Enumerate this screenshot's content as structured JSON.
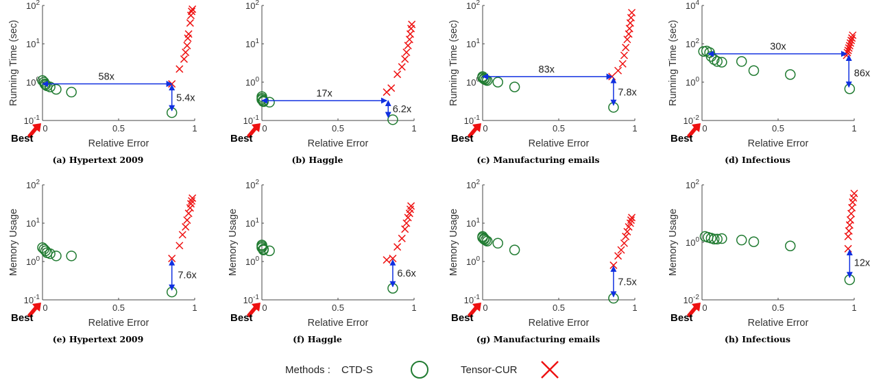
{
  "colors": {
    "ctd": "#1f7a30",
    "cur": "#ee1111",
    "arrow": "#1030e0",
    "best": "#ee1111"
  },
  "legend": {
    "title": "Methods :",
    "ctd": "CTD-S",
    "cur": "Tensor-CUR"
  },
  "chart_data": [
    {
      "type": "scatter",
      "caption": "(a) Hypertext 2009",
      "xlabel": "Relative Error",
      "ylabel": "Running Time (sec)",
      "xlim": [
        0,
        1
      ],
      "ylog": true,
      "ylim": [
        0.1,
        100
      ],
      "xticks": [
        "0",
        "0.5",
        "1"
      ],
      "yticks": [
        "10^-1",
        "10^0",
        "10^1",
        "10^2"
      ],
      "best_label": "Best",
      "series": [
        {
          "name": "CTD-S",
          "points": [
            [
              0.0,
              1.1
            ],
            [
              0.01,
              1.0
            ],
            [
              0.015,
              0.9
            ],
            [
              0.02,
              0.85
            ],
            [
              0.03,
              0.8
            ],
            [
              0.05,
              0.75
            ],
            [
              0.09,
              0.65
            ],
            [
              0.19,
              0.55
            ],
            [
              0.85,
              0.16
            ]
          ]
        },
        {
          "name": "Tensor-CUR",
          "points": [
            [
              0.85,
              0.9
            ],
            [
              0.9,
              2.2
            ],
            [
              0.93,
              4
            ],
            [
              0.94,
              6
            ],
            [
              0.95,
              9
            ],
            [
              0.955,
              14
            ],
            [
              0.96,
              18
            ],
            [
              0.97,
              35
            ],
            [
              0.975,
              55
            ],
            [
              0.98,
              70
            ],
            [
              0.985,
              80
            ]
          ]
        }
      ],
      "arrows": [
        {
          "label": "58x",
          "from": [
            0.0,
            0.9
          ],
          "to": [
            0.85,
            0.9
          ],
          "label_at": [
            0.42,
            0.9
          ],
          "label_side": "above"
        },
        {
          "label": "5.4x",
          "from": [
            0.85,
            0.85
          ],
          "to": [
            0.85,
            0.18
          ],
          "label_at": [
            0.87,
            0.4
          ],
          "label_side": "right"
        }
      ]
    },
    {
      "type": "scatter",
      "caption": "(b) Haggle",
      "xlabel": "Relative Error",
      "ylabel": "",
      "xlim": [
        0,
        1
      ],
      "ylog": true,
      "ylim": [
        0.1,
        100
      ],
      "xticks": [
        "0",
        "0.5",
        "1"
      ],
      "yticks": [
        "10^-1",
        "10^0",
        "10^1",
        "10^2"
      ],
      "best_label": "Best",
      "series": [
        {
          "name": "CTD-S",
          "points": [
            [
              0.0,
              0.42
            ],
            [
              0.0,
              0.38
            ],
            [
              0.0,
              0.35
            ],
            [
              0.01,
              0.33
            ],
            [
              0.01,
              0.31
            ],
            [
              0.05,
              0.3
            ],
            [
              0.86,
              0.105
            ]
          ]
        },
        {
          "name": "Tensor-CUR",
          "points": [
            [
              0.82,
              0.55
            ],
            [
              0.85,
              0.7
            ],
            [
              0.89,
              1.6
            ],
            [
              0.92,
              2.5
            ],
            [
              0.94,
              4
            ],
            [
              0.95,
              6
            ],
            [
              0.96,
              9
            ],
            [
              0.97,
              13
            ],
            [
              0.975,
              18
            ],
            [
              0.98,
              25
            ],
            [
              0.985,
              32
            ]
          ]
        }
      ],
      "arrows": [
        {
          "label": "17x",
          "from": [
            0.0,
            0.33
          ],
          "to": [
            0.82,
            0.33
          ],
          "label_at": [
            0.41,
            0.33
          ],
          "label_side": "above"
        },
        {
          "label": "6.2x",
          "from": [
            0.83,
            0.33
          ],
          "to": [
            0.83,
            0.12
          ],
          "label_at": [
            0.85,
            0.2
          ],
          "label_side": "right"
        }
      ]
    },
    {
      "type": "scatter",
      "caption": "(c) Manufacturing emails",
      "xlabel": "Relative Error",
      "ylabel": "Running Time (sec)",
      "xlim": [
        0,
        1
      ],
      "ylog": true,
      "ylim": [
        0.1,
        100
      ],
      "xticks": [
        "0",
        "0.5",
        "1"
      ],
      "yticks": [
        "10^-1",
        "10^0",
        "10^1",
        "10^2"
      ],
      "best_label": "Best",
      "series": [
        {
          "name": "CTD-S",
          "points": [
            [
              0.0,
              1.4
            ],
            [
              0.0,
              1.3
            ],
            [
              0.01,
              1.25
            ],
            [
              0.01,
              1.2
            ],
            [
              0.02,
              1.15
            ],
            [
              0.03,
              1.1
            ],
            [
              0.1,
              1.0
            ],
            [
              0.21,
              0.75
            ],
            [
              0.86,
              0.22
            ]
          ]
        },
        {
          "name": "Tensor-CUR",
          "points": [
            [
              0.85,
              1.4
            ],
            [
              0.89,
              2
            ],
            [
              0.92,
              3
            ],
            [
              0.93,
              5
            ],
            [
              0.94,
              8
            ],
            [
              0.95,
              13
            ],
            [
              0.96,
              18
            ],
            [
              0.965,
              25
            ],
            [
              0.97,
              35
            ],
            [
              0.975,
              48
            ],
            [
              0.98,
              65
            ]
          ]
        }
      ],
      "arrows": [
        {
          "label": "83x",
          "from": [
            0.0,
            1.4
          ],
          "to": [
            0.85,
            1.4
          ],
          "label_at": [
            0.42,
            1.4
          ],
          "label_side": "above"
        },
        {
          "label": "7.8x",
          "from": [
            0.86,
            1.3
          ],
          "to": [
            0.86,
            0.25
          ],
          "label_at": [
            0.88,
            0.55
          ],
          "label_side": "right"
        }
      ]
    },
    {
      "type": "scatter",
      "caption": "(d) Infectious",
      "xlabel": "Relative Error",
      "ylabel": "Running Time (sec)",
      "xlim": [
        0,
        1
      ],
      "ylog": true,
      "ylim": [
        0.01,
        10000
      ],
      "xticks": [
        "0",
        "0.5",
        "1"
      ],
      "yticks": [
        "10^-2",
        "10^0",
        "10^2",
        "10^4"
      ],
      "best_label": "Best",
      "series": [
        {
          "name": "CTD-S",
          "points": [
            [
              0.01,
              40
            ],
            [
              0.03,
              42
            ],
            [
              0.05,
              35
            ],
            [
              0.06,
              22
            ],
            [
              0.08,
              15
            ],
            [
              0.1,
              12
            ],
            [
              0.13,
              11
            ],
            [
              0.26,
              12
            ],
            [
              0.34,
              4
            ],
            [
              0.58,
              2.5
            ],
            [
              0.97,
              0.45
            ]
          ]
        },
        {
          "name": "Tensor-CUR",
          "points": [
            [
              0.95,
              25
            ],
            [
              0.955,
              35
            ],
            [
              0.96,
              45
            ],
            [
              0.965,
              60
            ],
            [
              0.97,
              80
            ],
            [
              0.975,
              110
            ],
            [
              0.98,
              150
            ],
            [
              0.985,
              200
            ],
            [
              0.99,
              280
            ]
          ]
        }
      ],
      "arrows": [
        {
          "label": "30x",
          "from": [
            0.04,
            30
          ],
          "to": [
            0.95,
            30
          ],
          "label_at": [
            0.5,
            30
          ],
          "label_side": "above"
        },
        {
          "label": "86x",
          "from": [
            0.965,
            25
          ],
          "to": [
            0.965,
            0.55
          ],
          "label_at": [
            0.99,
            3
          ],
          "label_side": "right"
        }
      ]
    },
    {
      "type": "scatter",
      "caption": "(e) Hypertext 2009",
      "xlabel": "Relative Error",
      "ylabel": "Memory Usage",
      "xlim": [
        0,
        1
      ],
      "ylog": true,
      "ylim": [
        0.1,
        100
      ],
      "xticks": [
        "0",
        "0.5",
        "1"
      ],
      "yticks": [
        "10^-1",
        "10^0",
        "10^1",
        "10^2"
      ],
      "best_label": "Best",
      "series": [
        {
          "name": "CTD-S",
          "points": [
            [
              0.0,
              2.3
            ],
            [
              0.01,
              2.1
            ],
            [
              0.02,
              1.9
            ],
            [
              0.03,
              1.7
            ],
            [
              0.05,
              1.6
            ],
            [
              0.09,
              1.4
            ],
            [
              0.19,
              1.4
            ],
            [
              0.85,
              0.16
            ]
          ]
        },
        {
          "name": "Tensor-CUR",
          "points": [
            [
              0.85,
              1.2
            ],
            [
              0.9,
              2.6
            ],
            [
              0.92,
              5
            ],
            [
              0.94,
              8
            ],
            [
              0.95,
              12
            ],
            [
              0.96,
              18
            ],
            [
              0.97,
              25
            ],
            [
              0.975,
              32
            ],
            [
              0.98,
              38
            ],
            [
              0.985,
              45
            ]
          ]
        }
      ],
      "arrows": [
        {
          "label": "7.6x",
          "from": [
            0.85,
            1.1
          ],
          "to": [
            0.85,
            0.18
          ],
          "label_at": [
            0.88,
            0.45
          ],
          "label_side": "right"
        }
      ]
    },
    {
      "type": "scatter",
      "caption": "(f) Haggle",
      "xlabel": "Relative Error",
      "ylabel": "Memory Usage",
      "xlim": [
        0,
        1
      ],
      "ylog": true,
      "ylim": [
        0.1,
        100
      ],
      "xticks": [
        "0",
        "0.5",
        "1"
      ],
      "yticks": [
        "10^-1",
        "10^0",
        "10^1",
        "10^2"
      ],
      "best_label": "Best",
      "series": [
        {
          "name": "CTD-S",
          "points": [
            [
              0.0,
              2.7
            ],
            [
              0.0,
              2.5
            ],
            [
              0.0,
              2.3
            ],
            [
              0.01,
              2.1
            ],
            [
              0.01,
              2.0
            ],
            [
              0.05,
              1.9
            ],
            [
              0.86,
              0.2
            ]
          ]
        },
        {
          "name": "Tensor-CUR",
          "points": [
            [
              0.82,
              1.1
            ],
            [
              0.86,
              1.2
            ],
            [
              0.89,
              2.4
            ],
            [
              0.92,
              4
            ],
            [
              0.94,
              7
            ],
            [
              0.95,
              10
            ],
            [
              0.96,
              14
            ],
            [
              0.97,
              18
            ],
            [
              0.975,
              23
            ],
            [
              0.98,
              28
            ]
          ]
        }
      ],
      "arrows": [
        {
          "label": "6.6x",
          "from": [
            0.86,
            1.1
          ],
          "to": [
            0.86,
            0.22
          ],
          "label_at": [
            0.88,
            0.5
          ],
          "label_side": "right"
        }
      ]
    },
    {
      "type": "scatter",
      "caption": "(g) Manufacturing emails",
      "xlabel": "Relative Error",
      "ylabel": "Memory Usage",
      "xlim": [
        0,
        1
      ],
      "ylog": true,
      "ylim": [
        0.1,
        100
      ],
      "xticks": [
        "0",
        "0.5",
        "1"
      ],
      "yticks": [
        "10^-1",
        "10^0",
        "10^1",
        "10^2"
      ],
      "best_label": "Best",
      "series": [
        {
          "name": "CTD-S",
          "points": [
            [
              0.0,
              4.5
            ],
            [
              0.0,
              4.2
            ],
            [
              0.01,
              4.0
            ],
            [
              0.01,
              3.8
            ],
            [
              0.02,
              3.6
            ],
            [
              0.03,
              3.4
            ],
            [
              0.1,
              3.0
            ],
            [
              0.21,
              2.0
            ],
            [
              0.86,
              0.11
            ]
          ]
        },
        {
          "name": "Tensor-CUR",
          "points": [
            [
              0.86,
              0.8
            ],
            [
              0.89,
              1.4
            ],
            [
              0.91,
              2
            ],
            [
              0.93,
              3
            ],
            [
              0.94,
              4.5
            ],
            [
              0.95,
              6
            ],
            [
              0.96,
              8
            ],
            [
              0.97,
              10
            ],
            [
              0.975,
              12
            ],
            [
              0.98,
              14
            ]
          ]
        }
      ],
      "arrows": [
        {
          "label": "7.5x",
          "from": [
            0.86,
            0.75
          ],
          "to": [
            0.86,
            0.12
          ],
          "label_at": [
            0.88,
            0.3
          ],
          "label_side": "right"
        }
      ]
    },
    {
      "type": "scatter",
      "caption": "(h) Infectious",
      "xlabel": "Relative Error",
      "ylabel": "Memory Usage",
      "xlim": [
        0,
        1
      ],
      "ylog": true,
      "ylim": [
        0.01,
        100
      ],
      "xticks": [
        "0",
        "0.5",
        "1"
      ],
      "yticks": [
        "10^-2",
        "10^0",
        "10^2"
      ],
      "best_label": "Best",
      "series": [
        {
          "name": "CTD-S",
          "points": [
            [
              0.02,
              1.6
            ],
            [
              0.04,
              1.5
            ],
            [
              0.06,
              1.4
            ],
            [
              0.08,
              1.3
            ],
            [
              0.1,
              1.3
            ],
            [
              0.13,
              1.35
            ],
            [
              0.26,
              1.2
            ],
            [
              0.34,
              1.05
            ],
            [
              0.58,
              0.75
            ],
            [
              0.97,
              0.05
            ]
          ]
        },
        {
          "name": "Tensor-CUR",
          "points": [
            [
              0.96,
              0.6
            ],
            [
              0.96,
              1.6
            ],
            [
              0.965,
              2.5
            ],
            [
              0.97,
              4
            ],
            [
              0.975,
              6
            ],
            [
              0.98,
              10
            ],
            [
              0.985,
              16
            ],
            [
              0.99,
              25
            ],
            [
              0.995,
              35
            ],
            [
              1.0,
              50
            ]
          ]
        }
      ],
      "arrows": [
        {
          "label": "12x",
          "from": [
            0.97,
            0.55
          ],
          "to": [
            0.97,
            0.06
          ],
          "label_at": [
            0.99,
            0.2
          ],
          "label_side": "right"
        }
      ]
    }
  ]
}
